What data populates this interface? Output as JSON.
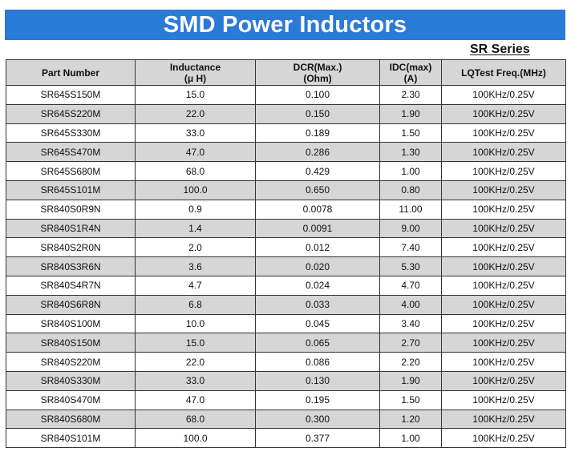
{
  "title": "SMD Power Inductors",
  "series": "SR Series",
  "table": {
    "headers": [
      {
        "line1": "Part Number",
        "line2": ""
      },
      {
        "line1": "Inductance",
        "line2": "(μ H)"
      },
      {
        "line1": "DCR(Max.)",
        "line2": "(Ohm)"
      },
      {
        "line1": "IDC(max)",
        "line2": "(A)"
      },
      {
        "line1": "LQTest Freq.(MHz)",
        "line2": ""
      }
    ],
    "rows": [
      {
        "part": "SR645S150M",
        "inductance": "15.0",
        "dcr": "0.100",
        "idc": "2.30",
        "freq": "100KHz/0.25V"
      },
      {
        "part": "SR645S220M",
        "inductance": "22.0",
        "dcr": "0.150",
        "idc": "1.90",
        "freq": "100KHz/0.25V"
      },
      {
        "part": "SR645S330M",
        "inductance": "33.0",
        "dcr": "0.189",
        "idc": "1.50",
        "freq": "100KHz/0.25V"
      },
      {
        "part": "SR645S470M",
        "inductance": "47.0",
        "dcr": "0.286",
        "idc": "1.30",
        "freq": "100KHz/0.25V"
      },
      {
        "part": "SR645S680M",
        "inductance": "68.0",
        "dcr": "0.429",
        "idc": "1.00",
        "freq": "100KHz/0.25V"
      },
      {
        "part": "SR645S101M",
        "inductance": "100.0",
        "dcr": "0.650",
        "idc": "0.80",
        "freq": "100KHz/0.25V"
      },
      {
        "part": "SR840S0R9N",
        "inductance": "0.9",
        "dcr": "0.0078",
        "idc": "11.00",
        "freq": "100KHz/0.25V"
      },
      {
        "part": "SR840S1R4N",
        "inductance": "1.4",
        "dcr": "0.0091",
        "idc": "9.00",
        "freq": "100KHz/0.25V"
      },
      {
        "part": "SR840S2R0N",
        "inductance": "2.0",
        "dcr": "0.012",
        "idc": "7.40",
        "freq": "100KHz/0.25V"
      },
      {
        "part": "SR840S3R6N",
        "inductance": "3.6",
        "dcr": "0.020",
        "idc": "5.30",
        "freq": "100KHz/0.25V"
      },
      {
        "part": "SR840S4R7N",
        "inductance": "4.7",
        "dcr": "0.024",
        "idc": "4.70",
        "freq": "100KHz/0.25V"
      },
      {
        "part": "SR840S6R8N",
        "inductance": "6.8",
        "dcr": "0.033",
        "idc": "4.00",
        "freq": "100KHz/0.25V"
      },
      {
        "part": "SR840S100M",
        "inductance": "10.0",
        "dcr": "0.045",
        "idc": "3.40",
        "freq": "100KHz/0.25V"
      },
      {
        "part": "SR840S150M",
        "inductance": "15.0",
        "dcr": "0.065",
        "idc": "2.70",
        "freq": "100KHz/0.25V"
      },
      {
        "part": "SR840S220M",
        "inductance": "22.0",
        "dcr": "0.086",
        "idc": "2.20",
        "freq": "100KHz/0.25V"
      },
      {
        "part": "SR840S330M",
        "inductance": "33.0",
        "dcr": "0.130",
        "idc": "1.90",
        "freq": "100KHz/0.25V"
      },
      {
        "part": "SR840S470M",
        "inductance": "47.0",
        "dcr": "0.195",
        "idc": "1.50",
        "freq": "100KHz/0.25V"
      },
      {
        "part": "SR840S680M",
        "inductance": "68.0",
        "dcr": "0.300",
        "idc": "1.20",
        "freq": "100KHz/0.25V"
      },
      {
        "part": "SR840S101M",
        "inductance": "100.0",
        "dcr": "0.377",
        "idc": "1.00",
        "freq": "100KHz/0.25V"
      }
    ]
  },
  "colors": {
    "banner": "#2a7ad7",
    "banner_text": "#ffffff",
    "header_bg": "#d6d6d6",
    "stripe_bg": "#d6d6d6"
  }
}
